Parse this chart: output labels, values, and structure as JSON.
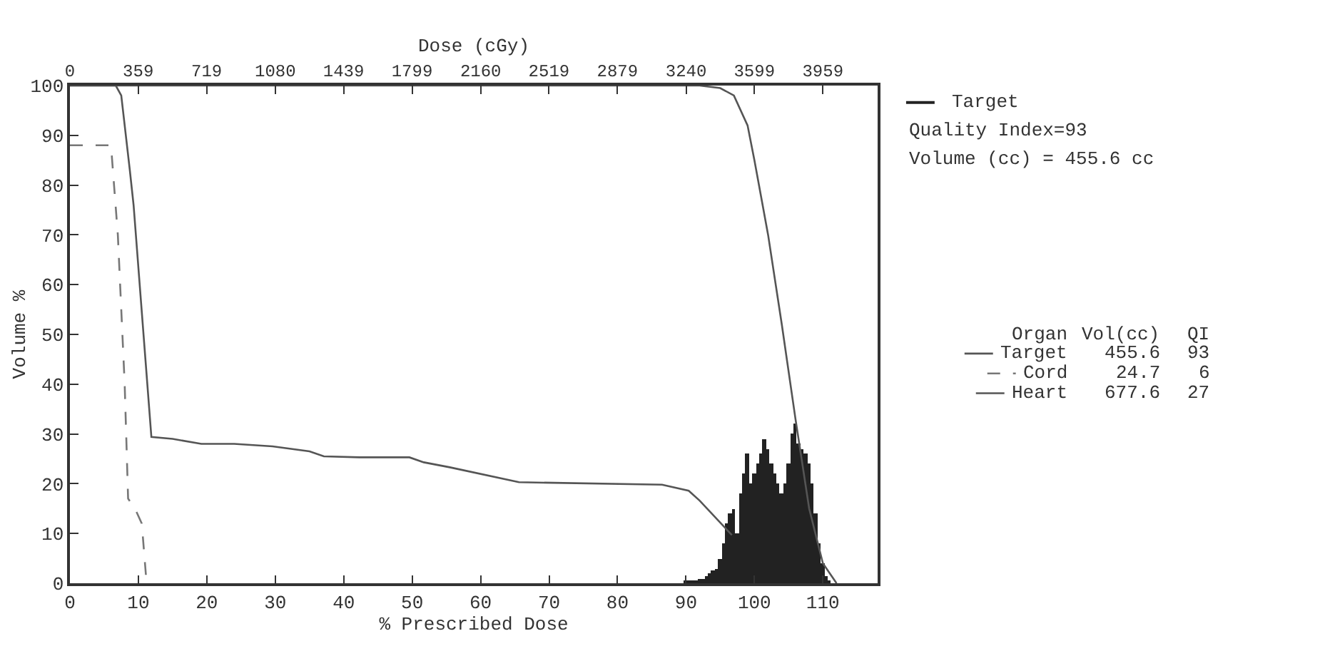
{
  "chart_data": {
    "type": "line",
    "x2label": "Dose (cGy)",
    "xlabel": "% Prescribed Dose",
    "ylabel": "Volume %",
    "xlim": [
      0,
      118
    ],
    "xticks": [
      0,
      10,
      20,
      30,
      40,
      50,
      60,
      70,
      80,
      90,
      100,
      110
    ],
    "x2lim": [
      0,
      4247
    ],
    "x2ticks": [
      0,
      359,
      719,
      1080,
      1439,
      1799,
      2160,
      2519,
      2879,
      3240,
      3599,
      3959
    ],
    "ylim": [
      0,
      100
    ],
    "yticks": [
      0,
      10,
      20,
      30,
      40,
      50,
      60,
      70,
      80,
      90,
      100
    ],
    "legend": "right",
    "marker": "none",
    "series": [
      {
        "name": "Target",
        "type": "bar",
        "color": "#222222",
        "x": [
          90,
          90.5,
          91,
          91.5,
          92,
          92.5,
          93,
          93.5,
          94,
          94.5,
          95,
          95.5,
          96,
          96.5,
          97,
          97.5,
          98,
          98.5,
          99,
          99.5,
          100,
          100.5,
          101,
          101.5,
          102,
          102.5,
          103,
          103.5,
          104,
          104.5,
          105,
          105.5,
          106,
          106.5,
          107,
          107.5,
          108,
          108.5,
          109,
          109.5,
          110,
          110.5,
          111
        ],
        "values": [
          0.3,
          0.3,
          0.5,
          0.5,
          1,
          1,
          1.5,
          2,
          2.5,
          3,
          5,
          8,
          12,
          14,
          15,
          10,
          18,
          22,
          26,
          20,
          22,
          24,
          26,
          29,
          27,
          24,
          22,
          20,
          18,
          20,
          24,
          30,
          32,
          28,
          27,
          26,
          24,
          20,
          14,
          8,
          4,
          1.5,
          0.5
        ]
      },
      {
        "name": "Target",
        "color": "#555555",
        "line_style": "solid",
        "x": [
          0,
          92,
          95,
          97,
          99,
          100,
          102,
          104,
          106,
          108,
          110,
          112
        ],
        "values": [
          100,
          100,
          99.5,
          98,
          92,
          85,
          70,
          52,
          33,
          15,
          4,
          0
        ]
      },
      {
        "name": "Cord",
        "color": "#777777",
        "line_style": "dashed",
        "x": [
          0,
          2,
          6,
          7,
          8,
          8.5,
          9.5,
          10.5,
          11.2
        ],
        "values": [
          88,
          88,
          88,
          70,
          40,
          17,
          15,
          12,
          0
        ]
      },
      {
        "name": "Heart",
        "color": "#555555",
        "line_style": "solid",
        "x": [
          0,
          6.7,
          7.5,
          8.75,
          9.3,
          11.9,
          15,
          19.2,
          24,
          29.6,
          35,
          37.1,
          42.3,
          49.6,
          51.7,
          55.5,
          65.6,
          86.5,
          90.4,
          92,
          96.7
        ],
        "values": [
          100,
          100,
          98,
          83,
          76,
          29.4,
          29,
          28,
          28,
          27.5,
          26.5,
          25.5,
          25.3,
          25.3,
          24.3,
          23.3,
          20.3,
          19.8,
          18.6,
          16.6,
          9.7
        ]
      }
    ],
    "annotations": [
      "Quality Index=93",
      "Volume (cc) = 455.6 cc",
      "Organ",
      "Vol(cc)",
      "QI",
      "455.6",
      "93",
      "24.7",
      "6",
      "677.6",
      "27"
    ]
  }
}
